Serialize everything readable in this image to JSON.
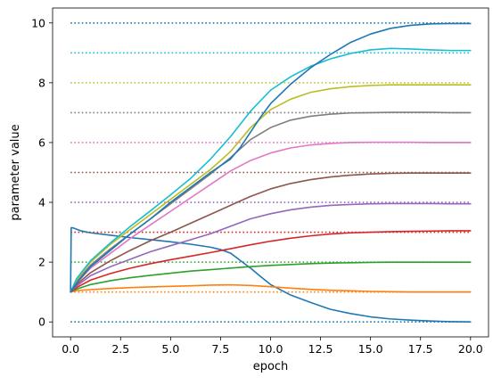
{
  "chart_data": {
    "type": "line",
    "xlabel": "epoch",
    "ylabel": "parameter value",
    "xlim": [
      -0.9,
      20.9
    ],
    "ylim": [
      -0.5,
      10.5
    ],
    "xticks": [
      0.0,
      2.5,
      5.0,
      7.5,
      10.0,
      12.5,
      15.0,
      17.5,
      20.0
    ],
    "xtick_labels": [
      "0.0",
      "2.5",
      "5.0",
      "7.5",
      "10.0",
      "12.5",
      "15.0",
      "17.5",
      "20.0"
    ],
    "yticks": [
      0,
      2,
      4,
      6,
      8,
      10
    ],
    "ytick_labels": [
      "0",
      "2",
      "4",
      "6",
      "8",
      "10"
    ],
    "grid": false,
    "targets": [
      {
        "value": 0,
        "color": "#1f77b4"
      },
      {
        "value": 1,
        "color": "#ff7f0e"
      },
      {
        "value": 2,
        "color": "#2ca02c"
      },
      {
        "value": 3,
        "color": "#d62728"
      },
      {
        "value": 4,
        "color": "#9467bd"
      },
      {
        "value": 5,
        "color": "#8c564b"
      },
      {
        "value": 6,
        "color": "#e377c2"
      },
      {
        "value": 7,
        "color": "#7f7f7f"
      },
      {
        "value": 8,
        "color": "#bcbd22"
      },
      {
        "value": 9,
        "color": "#17becf"
      },
      {
        "value": 10,
        "color": "#1f77b4"
      }
    ],
    "series": [
      {
        "color": "#1f77b4",
        "x": [
          0,
          0.03,
          0.1,
          0.5,
          1,
          2,
          3,
          4,
          5,
          6,
          7,
          7.5,
          8,
          8.5,
          9,
          9.5,
          10,
          11,
          12,
          13,
          14,
          15,
          16,
          17,
          18,
          19,
          20
        ],
        "y": [
          1.0,
          3.15,
          3.15,
          3.05,
          2.98,
          2.9,
          2.82,
          2.75,
          2.68,
          2.6,
          2.5,
          2.42,
          2.3,
          2.05,
          1.8,
          1.52,
          1.25,
          0.9,
          0.65,
          0.42,
          0.28,
          0.17,
          0.1,
          0.06,
          0.03,
          0.01,
          0.0
        ]
      },
      {
        "color": "#ff7f0e",
        "x": [
          0,
          0.3,
          1,
          2,
          3,
          4,
          5,
          6,
          7,
          8,
          9,
          10,
          11,
          12,
          13,
          14,
          15,
          16,
          17,
          18,
          19,
          20
        ],
        "y": [
          1.0,
          1.05,
          1.08,
          1.12,
          1.15,
          1.17,
          1.19,
          1.21,
          1.23,
          1.24,
          1.22,
          1.18,
          1.13,
          1.09,
          1.06,
          1.04,
          1.02,
          1.01,
          1.0,
          1.0,
          1.0,
          1.0
        ]
      },
      {
        "color": "#2ca02c",
        "x": [
          0,
          0.3,
          1,
          2,
          3,
          4,
          5,
          6,
          7,
          8,
          9,
          10,
          11,
          12,
          13,
          14,
          15,
          16,
          17,
          18,
          19,
          20
        ],
        "y": [
          1.0,
          1.1,
          1.25,
          1.38,
          1.48,
          1.56,
          1.63,
          1.7,
          1.75,
          1.8,
          1.85,
          1.89,
          1.92,
          1.95,
          1.97,
          1.98,
          1.99,
          2.0,
          2.0,
          2.0,
          2.0,
          2.0
        ]
      },
      {
        "color": "#d62728",
        "x": [
          0,
          0.3,
          1,
          2,
          3,
          4,
          5,
          6,
          7,
          8,
          9,
          10,
          11,
          12,
          13,
          14,
          15,
          16,
          17,
          18,
          19,
          20
        ],
        "y": [
          1.0,
          1.15,
          1.4,
          1.62,
          1.8,
          1.95,
          2.08,
          2.2,
          2.32,
          2.45,
          2.58,
          2.7,
          2.8,
          2.88,
          2.94,
          2.98,
          3.0,
          3.02,
          3.03,
          3.04,
          3.05,
          3.05
        ]
      },
      {
        "color": "#9467bd",
        "x": [
          0,
          0.3,
          1,
          2,
          3,
          4,
          5,
          6,
          7,
          8,
          9,
          10,
          11,
          12,
          13,
          14,
          15,
          16,
          17,
          18,
          19,
          20
        ],
        "y": [
          1.0,
          1.2,
          1.55,
          1.85,
          2.1,
          2.35,
          2.55,
          2.75,
          2.95,
          3.2,
          3.45,
          3.62,
          3.75,
          3.84,
          3.9,
          3.93,
          3.95,
          3.96,
          3.96,
          3.96,
          3.95,
          3.95
        ]
      },
      {
        "color": "#8c564b",
        "x": [
          0,
          0.3,
          1,
          2,
          3,
          4,
          5,
          6,
          7,
          8,
          9,
          10,
          11,
          12,
          13,
          14,
          15,
          16,
          17,
          18,
          19,
          20
        ],
        "y": [
          1.0,
          1.25,
          1.65,
          2.05,
          2.4,
          2.72,
          3.0,
          3.3,
          3.6,
          3.9,
          4.2,
          4.45,
          4.63,
          4.76,
          4.85,
          4.91,
          4.95,
          4.97,
          4.98,
          4.98,
          4.98,
          4.98
        ]
      },
      {
        "color": "#e377c2",
        "x": [
          0,
          0.3,
          1,
          2,
          3,
          4,
          5,
          6,
          7,
          8,
          9,
          10,
          11,
          12,
          13,
          14,
          15,
          16,
          17,
          18,
          19,
          20
        ],
        "y": [
          1.0,
          1.3,
          1.8,
          2.3,
          2.8,
          3.25,
          3.7,
          4.15,
          4.6,
          5.05,
          5.4,
          5.65,
          5.82,
          5.92,
          5.97,
          6.0,
          6.01,
          6.01,
          6.01,
          6.0,
          6.0,
          6.0
        ]
      },
      {
        "color": "#7f7f7f",
        "x": [
          0,
          0.3,
          1,
          2,
          3,
          4,
          5,
          6,
          7,
          8,
          9,
          10,
          11,
          12,
          13,
          14,
          15,
          16,
          17,
          18,
          19,
          20
        ],
        "y": [
          1.0,
          1.35,
          1.9,
          2.45,
          2.95,
          3.45,
          3.95,
          4.45,
          4.95,
          5.5,
          6.1,
          6.5,
          6.75,
          6.88,
          6.95,
          6.99,
          7.0,
          7.01,
          7.01,
          7.01,
          7.0,
          7.0
        ]
      },
      {
        "color": "#bcbd22",
        "x": [
          0,
          0.3,
          1,
          2,
          3,
          4,
          5,
          6,
          7,
          8,
          9,
          10,
          11,
          12,
          13,
          14,
          15,
          16,
          17,
          18,
          19,
          20
        ],
        "y": [
          1.0,
          1.4,
          2.0,
          2.6,
          3.1,
          3.6,
          4.1,
          4.6,
          5.1,
          5.7,
          6.5,
          7.1,
          7.45,
          7.68,
          7.8,
          7.87,
          7.91,
          7.93,
          7.93,
          7.93,
          7.93,
          7.93
        ]
      },
      {
        "color": "#17becf",
        "x": [
          0,
          0.3,
          1,
          2,
          3,
          4,
          5,
          6,
          7,
          8,
          9,
          10,
          11,
          12,
          13,
          14,
          15,
          16,
          17,
          18,
          19,
          20
        ],
        "y": [
          1.0,
          1.45,
          2.05,
          2.65,
          3.2,
          3.72,
          4.25,
          4.8,
          5.45,
          6.2,
          7.05,
          7.75,
          8.2,
          8.55,
          8.8,
          8.98,
          9.1,
          9.15,
          9.13,
          9.1,
          9.08,
          9.08
        ]
      },
      {
        "color": "#1f77b4",
        "x": [
          0,
          0.3,
          1,
          2,
          3,
          4,
          5,
          6,
          7,
          8,
          8.5,
          9,
          9.5,
          10,
          11,
          12,
          13,
          14,
          15,
          16,
          17,
          18,
          19,
          20
        ],
        "y": [
          1.0,
          1.3,
          1.85,
          2.4,
          2.95,
          3.45,
          4.0,
          4.5,
          5.0,
          5.45,
          5.85,
          6.35,
          6.85,
          7.3,
          7.95,
          8.5,
          8.95,
          9.35,
          9.63,
          9.82,
          9.92,
          9.97,
          9.98,
          9.98
        ]
      }
    ]
  }
}
